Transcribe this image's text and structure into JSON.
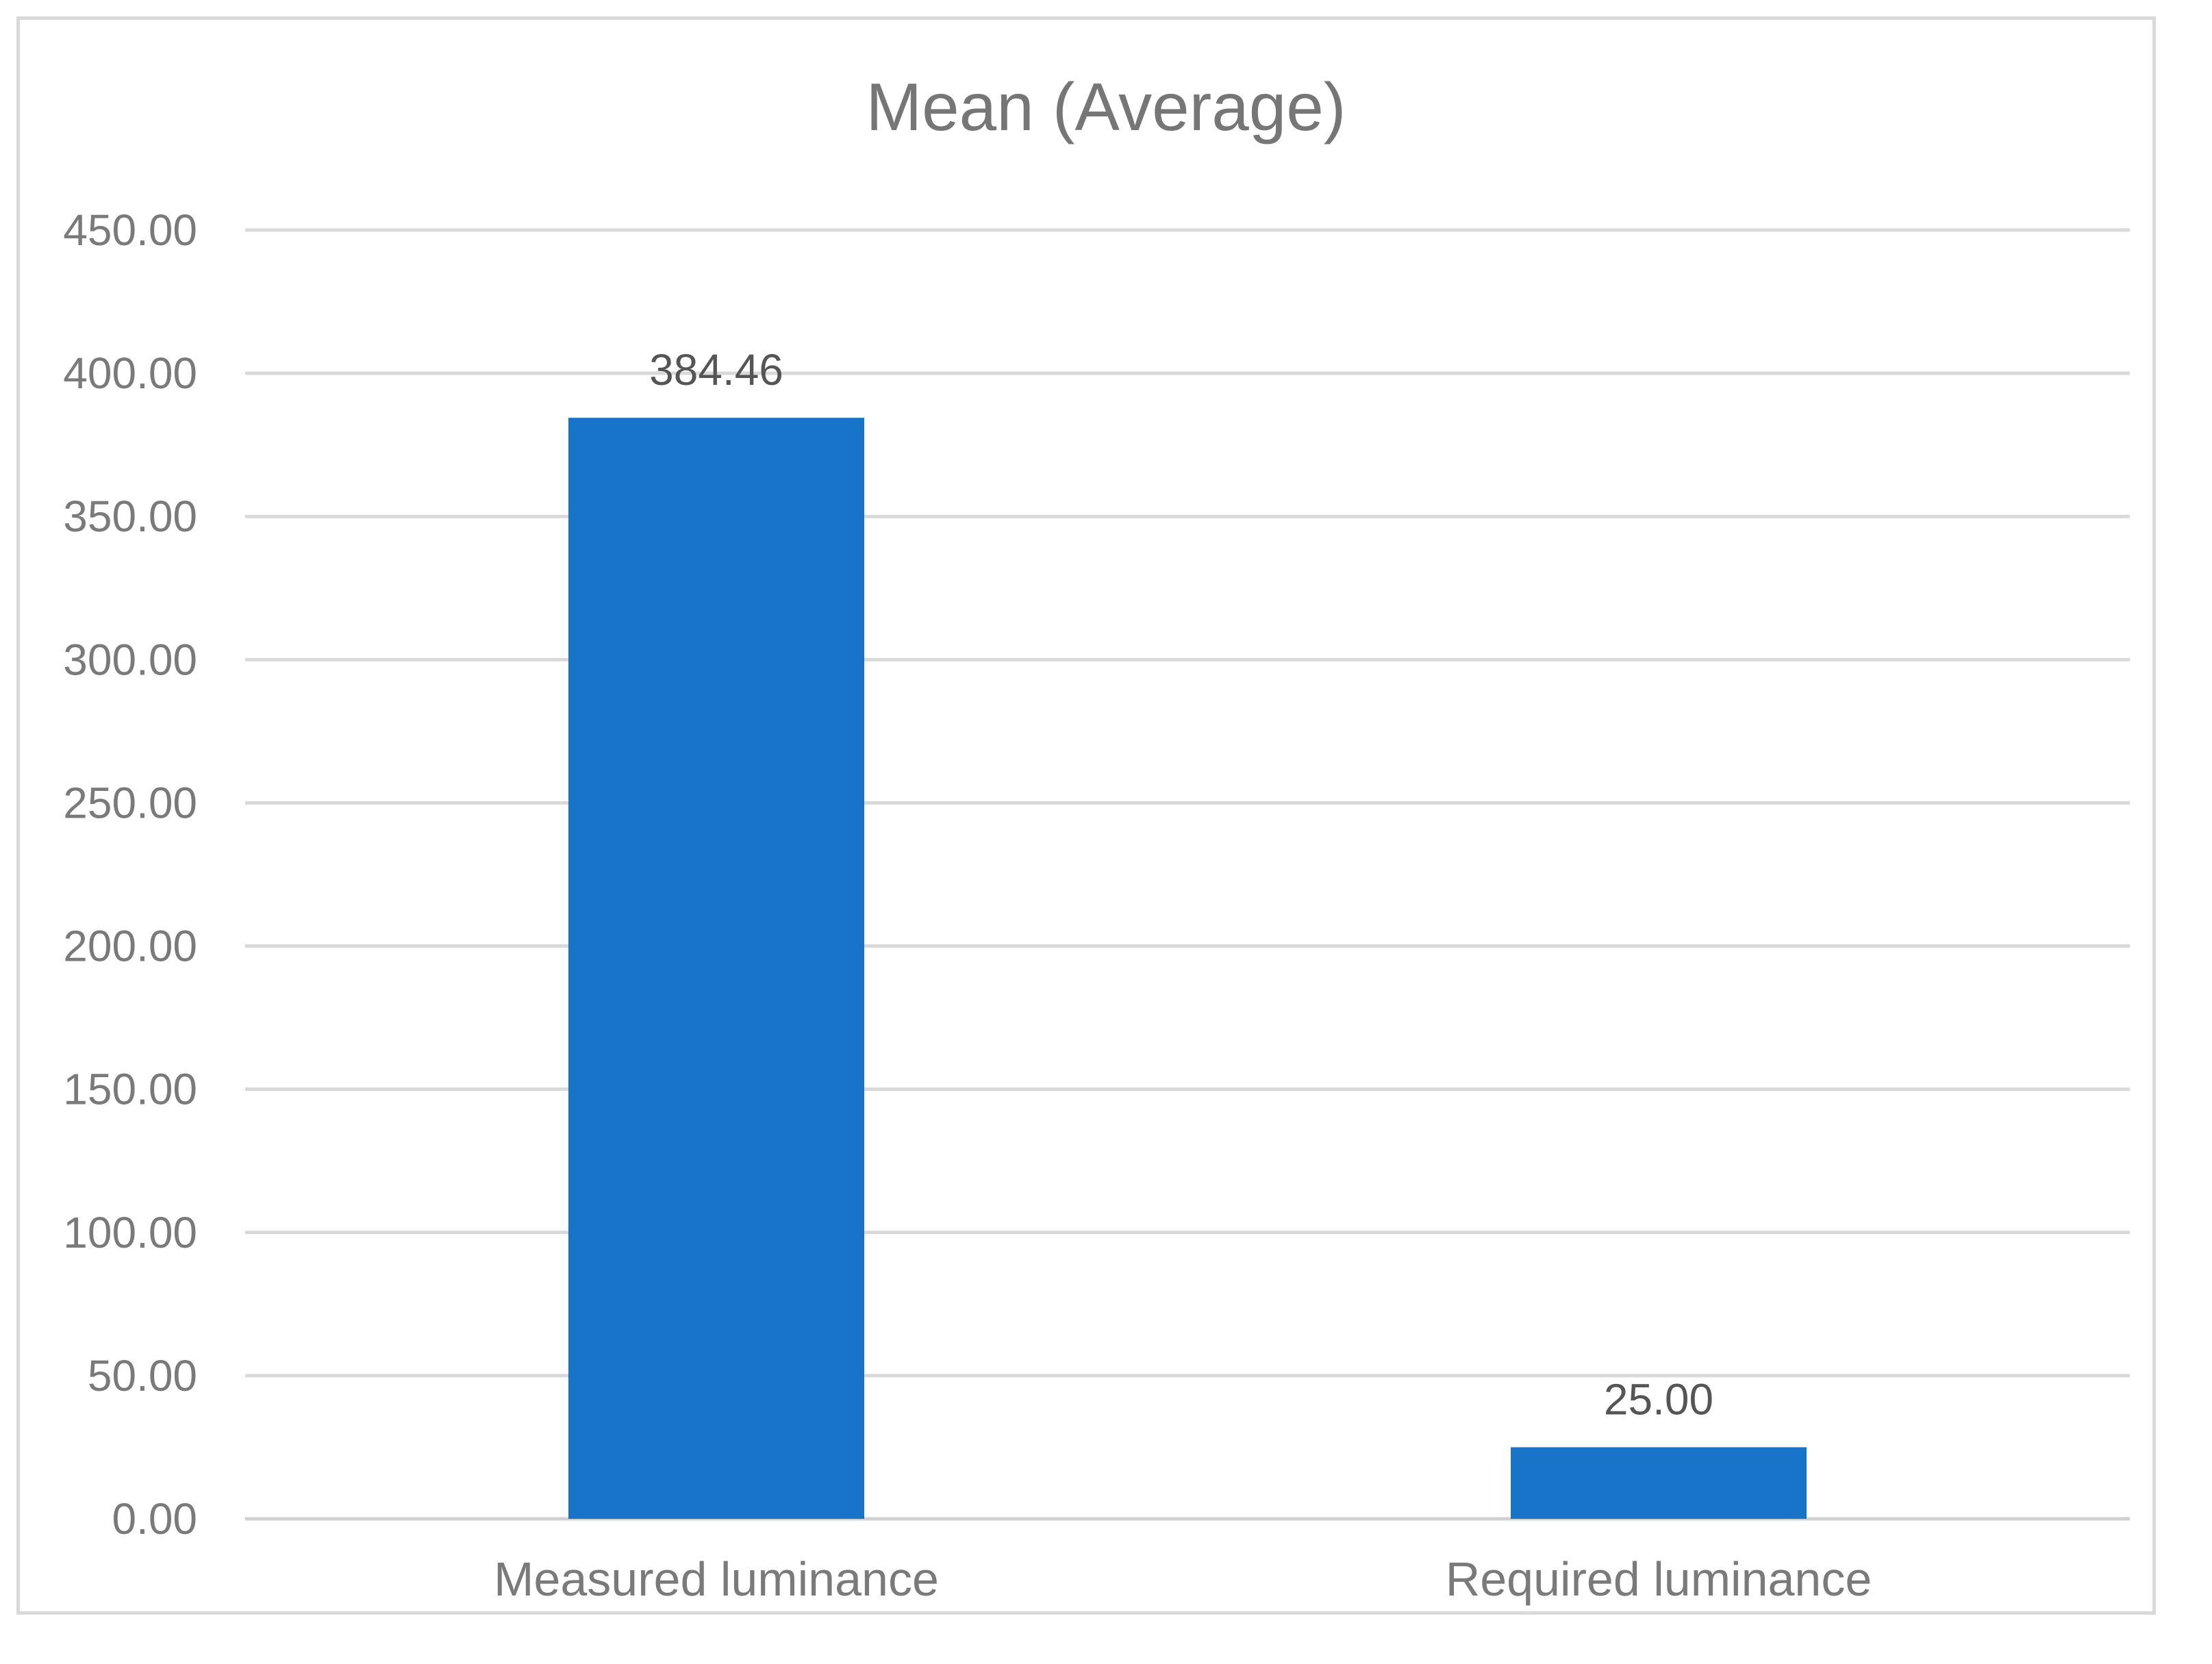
{
  "chart_data": {
    "type": "bar",
    "title": "Mean (Average)",
    "categories": [
      "Measured luminance",
      "Required luminance"
    ],
    "values": [
      384.46,
      25.0
    ],
    "data_labels": [
      "384.46",
      "25.00"
    ],
    "xlabel": "",
    "ylabel": "",
    "ylim": [
      0,
      450
    ],
    "y_ticks": [
      0,
      50,
      100,
      150,
      200,
      250,
      300,
      350,
      400,
      450
    ],
    "y_tick_labels": [
      "0.00",
      "50.00",
      "100.00",
      "150.00",
      "200.00",
      "250.00",
      "300.00",
      "350.00",
      "400.00",
      "450.00"
    ],
    "grid": true,
    "legend": "none",
    "bar_color": "#1874c9"
  }
}
